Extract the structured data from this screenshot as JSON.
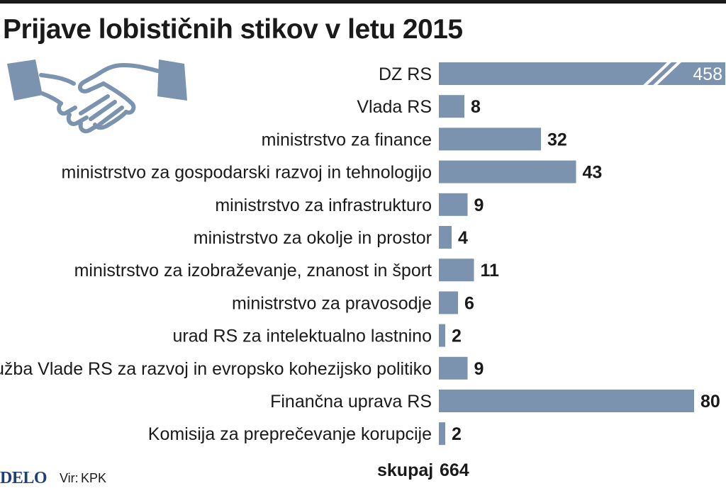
{
  "title": "Prijave lobističnih stikov v letu 2015",
  "colors": {
    "bar": "#7b93af",
    "icon_fill": "#7b93af",
    "icon_stroke": "#7b93af",
    "text": "#1a1a1a",
    "logo": "#1f3f7a"
  },
  "icon": "handshake-icon",
  "chart_data": {
    "type": "bar",
    "orientation": "horizontal",
    "title": "Prijave lobističnih stikov v letu 2015",
    "categories": [
      "DZ RS",
      "Vlada RS",
      "ministrstvo za finance",
      "ministrstvo za gospodarski razvoj in tehnologijo",
      "ministrstvo za infrastrukturo",
      "ministrstvo za okolje in prostor",
      "ministrstvo za izobraževanje, znanost in šport",
      "ministrstvo za pravosodje",
      "urad RS za intelektualno lastnino",
      "Služba Vlade RS za razvoj in evropsko kohezijsko politiko",
      "Finančna uprava RS",
      "Komisija za preprečevanje korupcije"
    ],
    "values": [
      458,
      8,
      32,
      43,
      9,
      4,
      11,
      6,
      2,
      9,
      80,
      2
    ],
    "value_labels": [
      "458",
      "8",
      "32",
      "43",
      "9",
      "4",
      "11",
      "6",
      "2",
      "9",
      "80",
      "2"
    ],
    "axis_break": "DZ RS",
    "grid": false,
    "legend": false
  },
  "footer": {
    "logo": "DELO",
    "source_label": "Vir:",
    "source_value": "KPK",
    "total_label": "skupaj",
    "total_value": "664"
  }
}
